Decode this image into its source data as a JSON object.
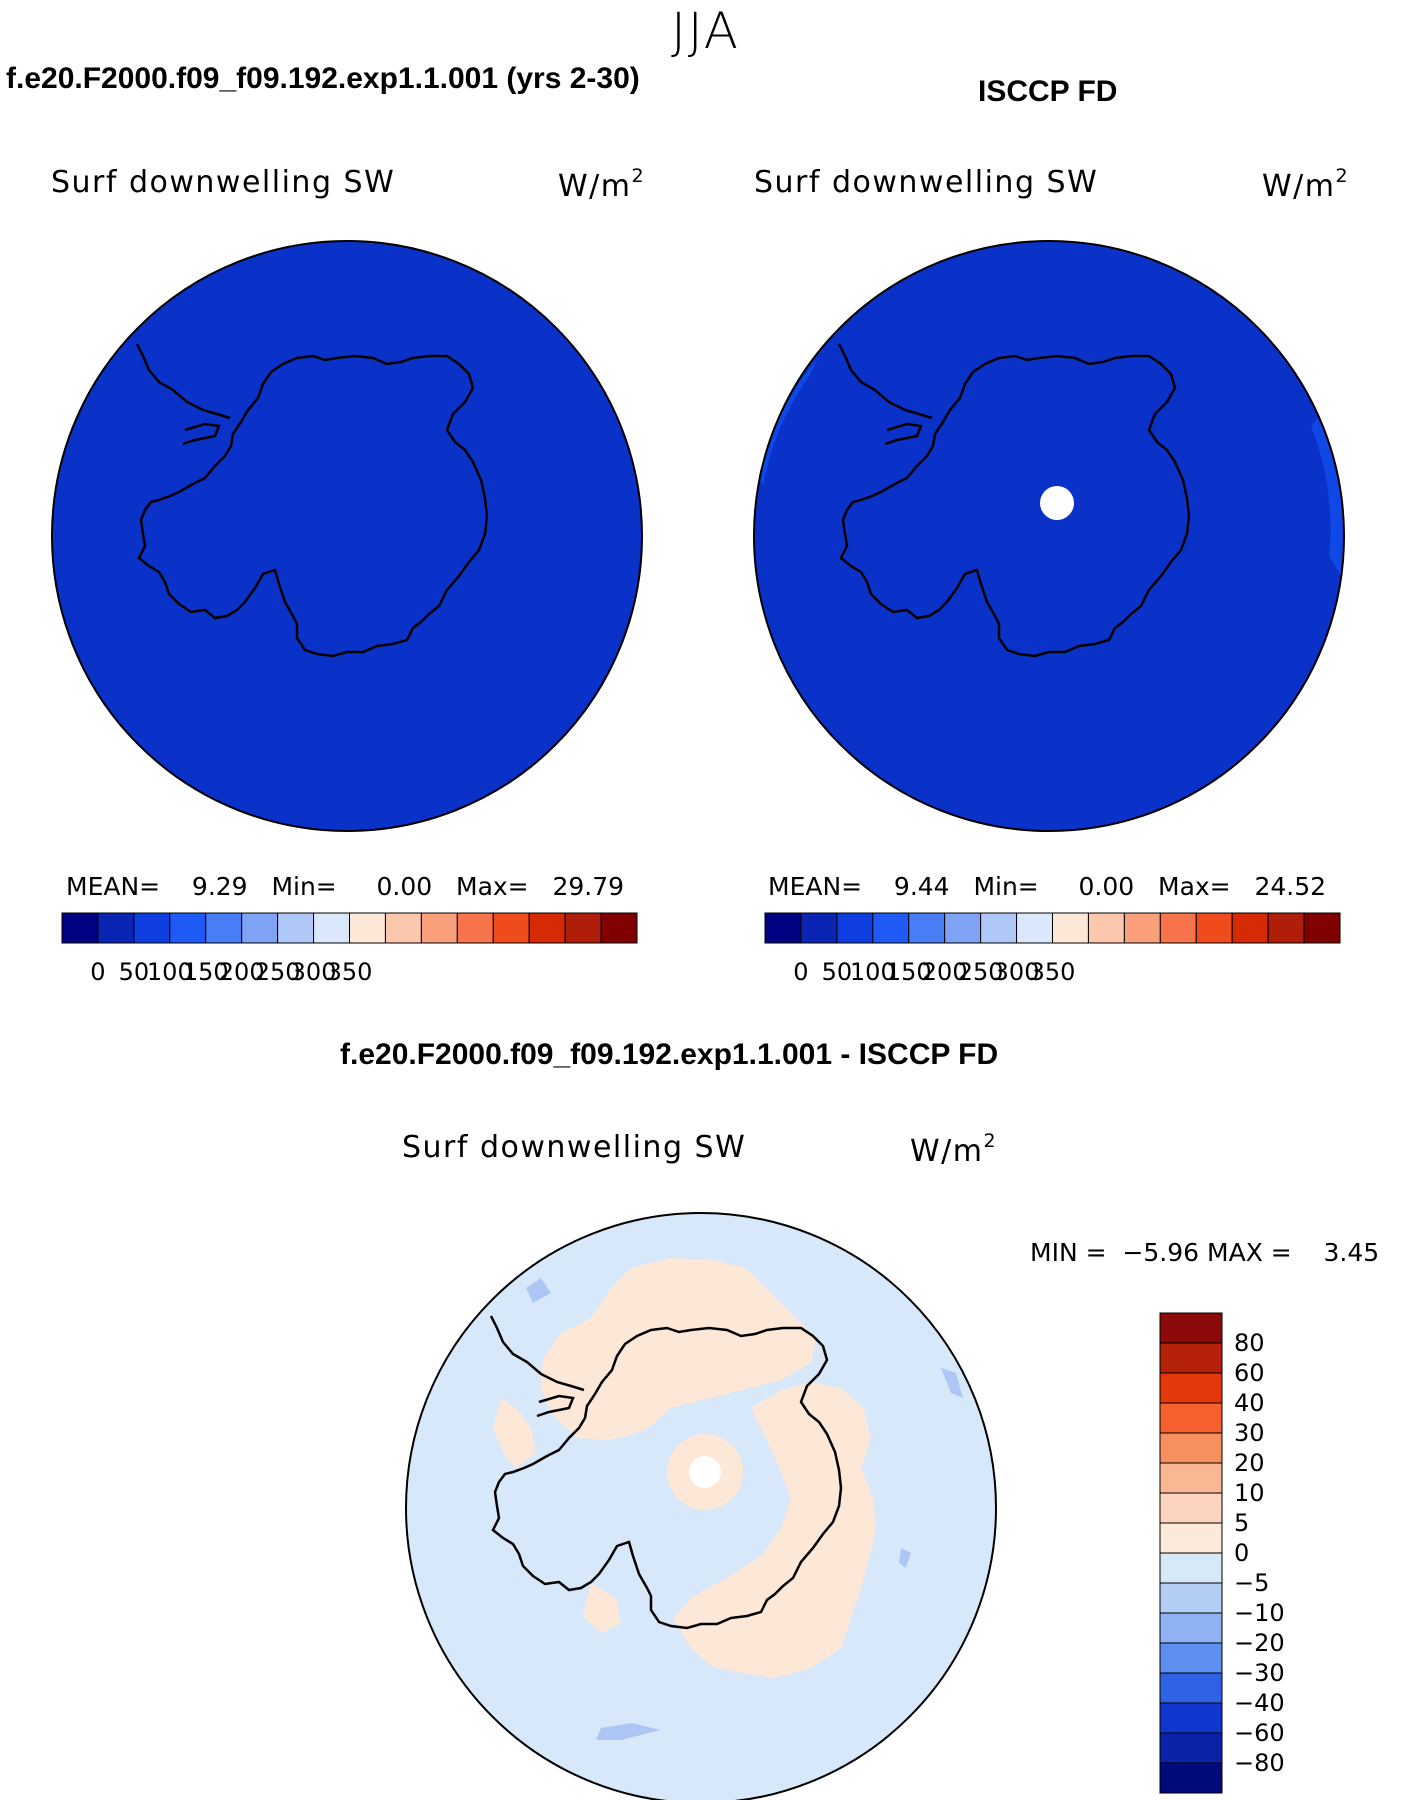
{
  "season": "JJA",
  "panels": [
    {
      "title": "f.e20.F2000.f09_f09.192.exp1.1.001 (yrs 2-30)",
      "variable": "Surf downwelling SW",
      "units_base": "W/m",
      "units_exp": "2",
      "stats": {
        "mean_label": "MEAN=",
        "mean": "9.29",
        "min_label": "Min=",
        "min": "0.00",
        "max_label": "Max=",
        "max": "29.79"
      }
    },
    {
      "title": "ISCCP FD",
      "variable": "Surf downwelling SW",
      "units_base": "W/m",
      "units_exp": "2",
      "stats": {
        "mean_label": "MEAN=",
        "mean": "9.44",
        "min_label": "Min=",
        "min": "0.00",
        "max_label": "Max=",
        "max": "24.52"
      }
    }
  ],
  "abs_colorbar": {
    "ticks": [
      "0",
      "50",
      "100",
      "150",
      "200",
      "250",
      "300",
      "350"
    ],
    "colors": [
      "#000080",
      "#0a24b4",
      "#0f3ee0",
      "#1e5af5",
      "#4a7ef7",
      "#7ea3f5",
      "#b0c8f7",
      "#dbe8fb",
      "#fde7d6",
      "#fcc8ad",
      "#f9a07a",
      "#f7734a",
      "#f04b1c",
      "#d52a04",
      "#b01e0a",
      "#800000"
    ]
  },
  "diff_panel": {
    "title": "f.e20.F2000.f09_f09.192.exp1.1.001 - ISCCP FD",
    "variable": "Surf downwelling SW",
    "units_base": "W/m",
    "units_exp": "2",
    "stats": {
      "min_label": "MIN =",
      "min": "−5.96",
      "max_label": "MAX =",
      "max": "3.45"
    }
  },
  "diff_colorbar": {
    "labels": [
      "80",
      "60",
      "40",
      "30",
      "20",
      "10",
      "5",
      "0",
      "−5",
      "−10",
      "−20",
      "−30",
      "−40",
      "−60",
      "−80"
    ],
    "colors": [
      "#8c0a0a",
      "#b4200a",
      "#e3380a",
      "#f5602e",
      "#f7905e",
      "#fbb793",
      "#fcd3bc",
      "#fde9d9",
      "#d6e9f9",
      "#b4cdf5",
      "#8eb2f3",
      "#5d8ef0",
      "#2f62e5",
      "#1036cf",
      "#0a22a8",
      "#000a7a"
    ]
  },
  "colors": {
    "ocean_model": "#0a32c8",
    "obs_rim": "#0f48e6",
    "diff_negative": "#d8e8fb",
    "diff_positive": "#fde7d7",
    "diff_mid_negative": "#aec6f4",
    "missing": "#ffffff"
  }
}
